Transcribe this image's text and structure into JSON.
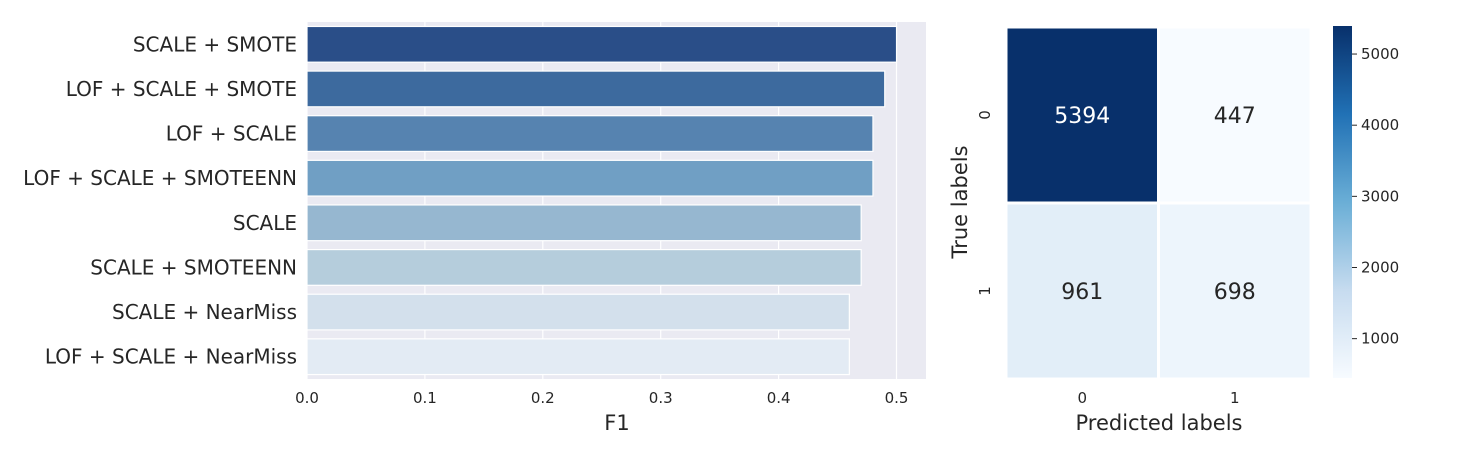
{
  "chart_data": [
    {
      "type": "bar",
      "orientation": "horizontal",
      "title": "",
      "xlabel": "F1",
      "ylabel": "",
      "xlim": [
        0,
        0.525
      ],
      "grid": true,
      "x_ticks": [
        "0.0",
        "0.1",
        "0.2",
        "0.3",
        "0.4",
        "0.5"
      ],
      "categories": [
        "SCALE + SMOTE",
        "LOF + SCALE + SMOTE",
        "LOF + SCALE",
        "LOF + SCALE + SMOTEENN",
        "SCALE",
        "SCALE + SMOTEENN",
        "SCALE + NearMiss",
        "LOF + SCALE + NearMiss"
      ],
      "values": [
        0.5,
        0.49,
        0.48,
        0.48,
        0.47,
        0.47,
        0.46,
        0.46
      ],
      "colors": [
        "#2a4e88",
        "#3d6a9e",
        "#5683b0",
        "#709fc4",
        "#96b7d0",
        "#b5cddc",
        "#d3e0ec",
        "#e3ebf4"
      ],
      "background": "#eaeaf2"
    },
    {
      "type": "heatmap",
      "title": "",
      "xlabel": "Predicted labels",
      "ylabel": "True labels",
      "x_ticks": [
        "0",
        "1"
      ],
      "y_ticks": [
        "0",
        "1"
      ],
      "values": [
        [
          5394,
          447
        ],
        [
          961,
          698
        ]
      ],
      "colormap": "Blues",
      "colorbar": {
        "min": 447,
        "max": 5394,
        "ticks": [
          "1000",
          "2000",
          "3000",
          "4000",
          "5000"
        ]
      }
    }
  ]
}
